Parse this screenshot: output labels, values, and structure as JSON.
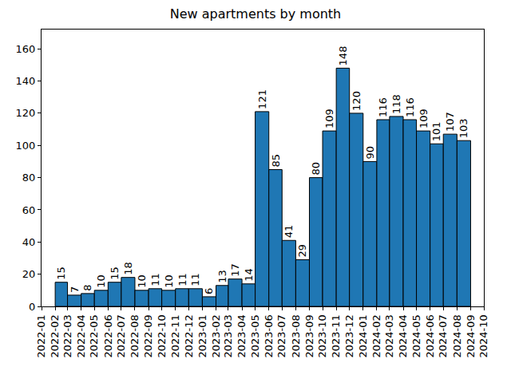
{
  "chart_data": {
    "type": "histogram",
    "title": "New apartments by month",
    "bins": [
      "2022-02",
      "2022-03",
      "2022-04",
      "2022-05",
      "2022-06",
      "2022-07",
      "2022-08",
      "2022-09",
      "2022-10",
      "2022-11",
      "2022-12",
      "2023-01",
      "2023-02",
      "2023-03",
      "2023-04",
      "2023-05",
      "2023-06",
      "2023-07",
      "2023-08",
      "2023-09",
      "2023-10",
      "2023-11",
      "2023-12",
      "2024-01",
      "2024-02",
      "2024-03",
      "2024-04",
      "2024-05",
      "2024-06",
      "2024-07",
      "2024-08",
      "2024-09"
    ],
    "values": [
      15,
      7,
      8,
      10,
      15,
      18,
      10,
      11,
      10,
      11,
      11,
      6,
      13,
      17,
      14,
      121,
      85,
      41,
      29,
      80,
      109,
      148,
      120,
      90,
      116,
      118,
      116,
      109,
      101,
      107,
      103
    ],
    "color": "#1f77b4",
    "data_labels": true,
    "grid": false,
    "xlim": [
      "2022-01",
      "2024-10"
    ],
    "xticks": [
      "2022-01",
      "2022-02",
      "2022-03",
      "2022-04",
      "2022-05",
      "2022-06",
      "2022-07",
      "2022-08",
      "2022-09",
      "2022-10",
      "2022-11",
      "2022-12",
      "2023-01",
      "2023-02",
      "2023-03",
      "2023-04",
      "2023-05",
      "2023-06",
      "2023-07",
      "2023-08",
      "2023-09",
      "2023-10",
      "2023-11",
      "2023-12",
      "2024-01",
      "2024-02",
      "2024-03",
      "2024-04",
      "2024-05",
      "2024-06",
      "2024-07",
      "2024-08",
      "2024-09",
      "2024-10"
    ],
    "ylim": [
      0,
      172
    ],
    "yticks": [
      0,
      20,
      40,
      60,
      80,
      100,
      120,
      140,
      160
    ]
  }
}
